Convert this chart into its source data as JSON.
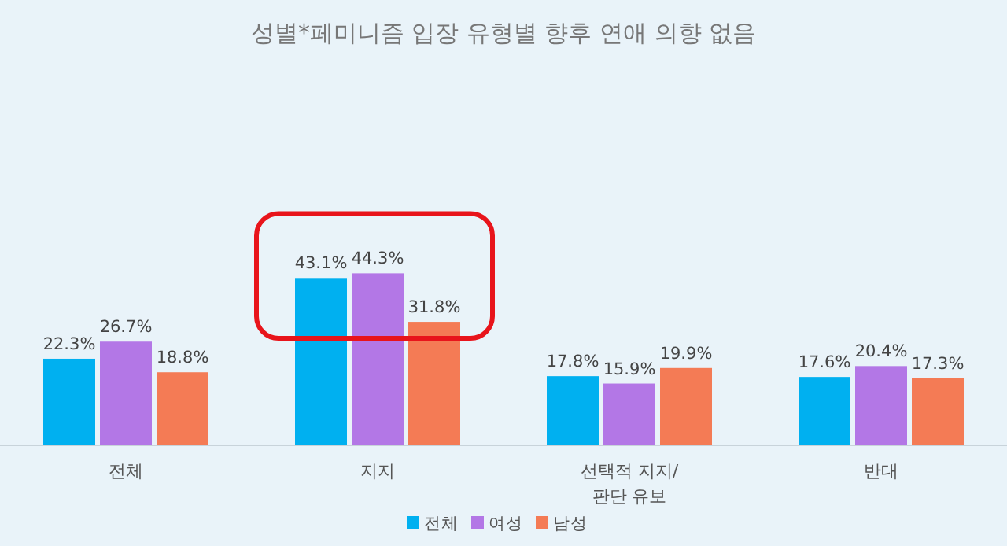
{
  "chart_data": {
    "type": "bar",
    "title": "성별*페미니즘 입장 유형별 향후 연애 의향 없음",
    "categories": [
      "전체",
      "지지",
      "선택적 지지/ 판단 유보",
      "반대"
    ],
    "series": [
      {
        "name": "전체",
        "color": "#00b0f0",
        "values": [
          22.3,
          43.1,
          17.8,
          17.6
        ],
        "value_labels": [
          "22.3%",
          "43.1%",
          "17.8%",
          "17.6%"
        ]
      },
      {
        "name": "여성",
        "color": "#b377e6",
        "values": [
          26.7,
          44.3,
          15.9,
          20.4
        ],
        "value_labels": [
          "26.7%",
          "44.3%",
          "15.9%",
          "20.4%"
        ]
      },
      {
        "name": "남성",
        "color": "#f47b55",
        "values": [
          18.8,
          31.8,
          19.9,
          17.3
        ],
        "value_labels": [
          "18.8%",
          "31.8%",
          "19.9%",
          "17.3%"
        ]
      }
    ],
    "legend": "bottom",
    "tick_labels": "x"
  }
}
